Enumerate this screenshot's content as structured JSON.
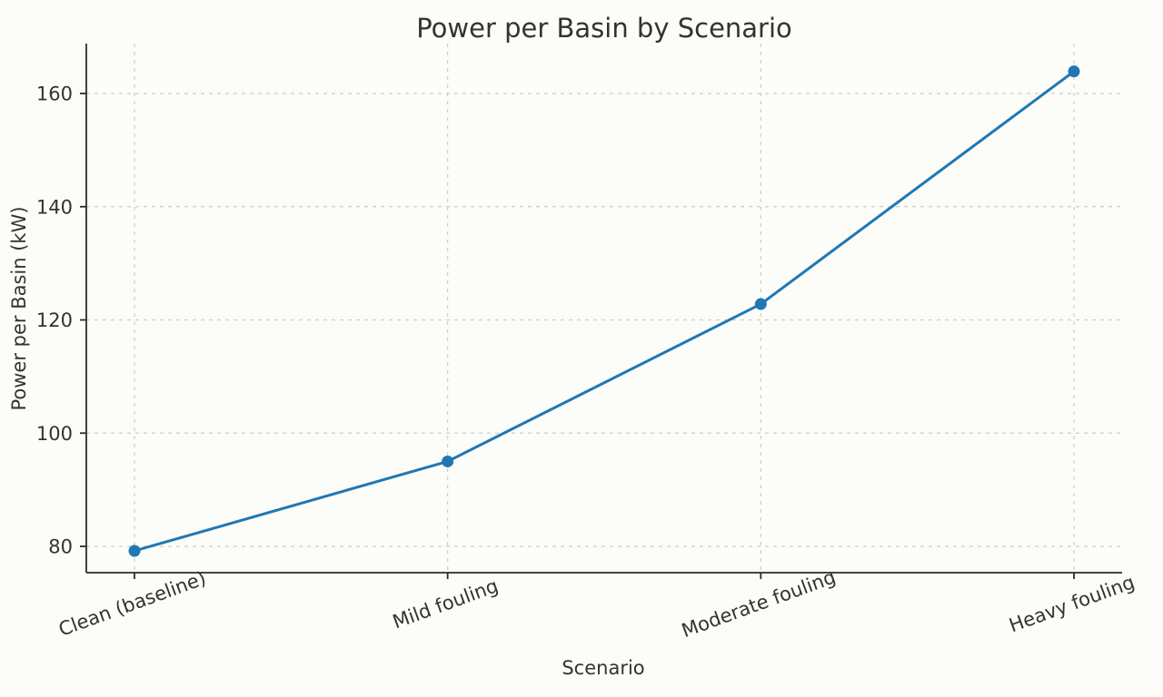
{
  "chart_data": {
    "type": "line",
    "title": "Power per Basin by Scenario",
    "xlabel": "Scenario",
    "ylabel": "Power per Basin (kW)",
    "categories": [
      "Clean (baseline)",
      "Mild fouling",
      "Moderate fouling",
      "Heavy fouling"
    ],
    "values": [
      79.2,
      95.0,
      122.8,
      163.9
    ],
    "yticks": [
      80,
      100,
      120,
      140,
      160
    ],
    "ylim": [
      75.3,
      168.8
    ],
    "grid": true,
    "grid_style": "dashed",
    "legend_position": "none",
    "x_tick_rotation_deg": 20,
    "marker": "circle"
  },
  "colors": {
    "background": "#fcfcf9",
    "line": "#1f77b4",
    "grid": "#cccccc",
    "spine": "#2b2b2b",
    "text": "#333333"
  }
}
